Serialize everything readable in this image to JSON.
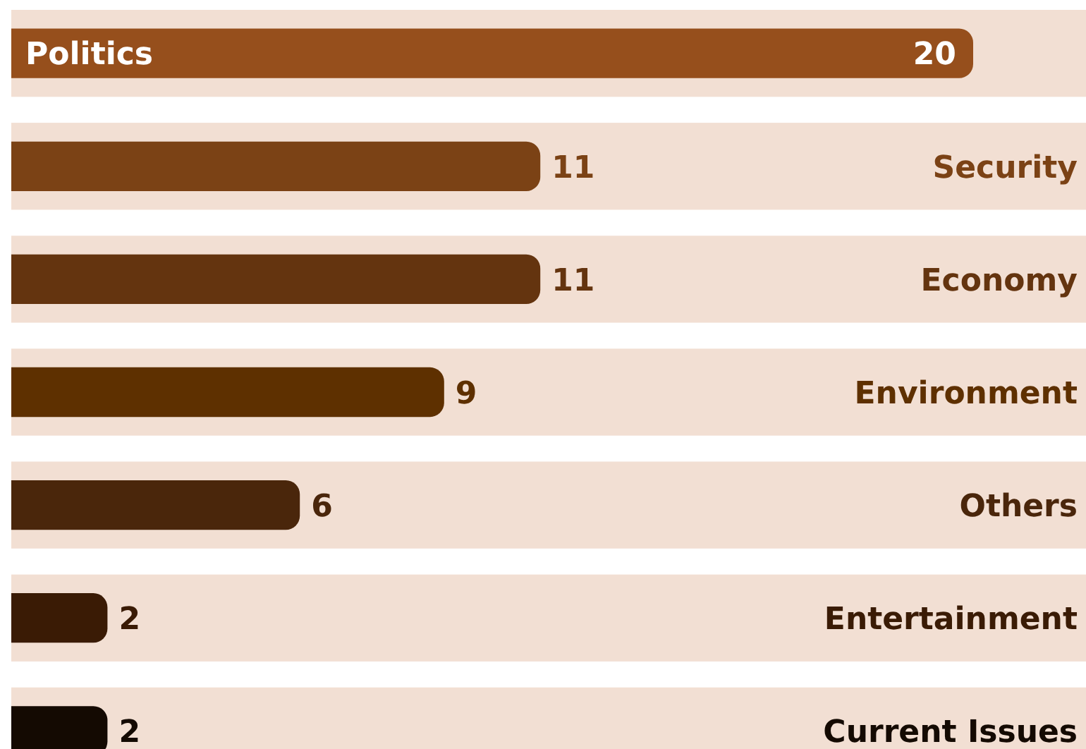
{
  "chart_data": {
    "type": "bar",
    "orientation": "horizontal",
    "data_labels": true,
    "categories": [
      "Politics",
      "Security",
      "Economy",
      "Environment",
      "Others",
      "Entertainment",
      "Current Issues"
    ],
    "values": [
      20,
      11,
      11,
      9,
      6,
      2,
      2
    ],
    "colors": [
      "#964f1c",
      "#7b4215",
      "#64340f",
      "#5e3000",
      "#4a260b",
      "#3a1b05",
      "#140a02"
    ],
    "bands": [
      {
        "axis": "y",
        "from": "Politics",
        "to": "Politics",
        "color": "#f2dfd3"
      },
      {
        "axis": "y",
        "from": "Security",
        "to": "Security",
        "color": "#f2dfd3"
      },
      {
        "axis": "y",
        "from": "Economy",
        "to": "Economy",
        "color": "#f2dfd3"
      },
      {
        "axis": "y",
        "from": "Environment",
        "to": "Environment",
        "color": "#f2dfd3"
      },
      {
        "axis": "y",
        "from": "Others",
        "to": "Others",
        "color": "#f2dfd3"
      },
      {
        "axis": "y",
        "from": "Entertainment",
        "to": "Entertainment",
        "color": "#f2dfd3"
      },
      {
        "axis": "y",
        "from": "Current Issues",
        "to": "Current Issues",
        "color": "#f2dfd3"
      }
    ]
  }
}
